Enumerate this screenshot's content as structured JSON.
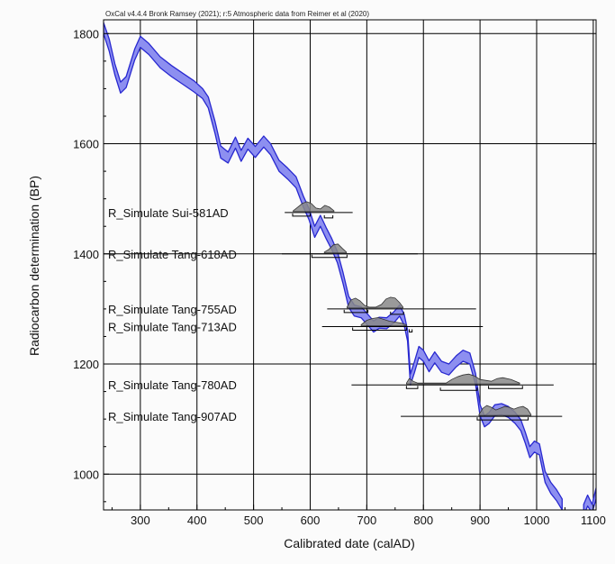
{
  "chart_data": {
    "type": "area",
    "credit": "OxCal v4.4.4 Bronk Ramsey (2021); r:5 Atmospheric data from Reimer et al (2020)",
    "xlabel": "Calibrated date (calAD)",
    "ylabel": "Radiocarbon determination (BP)",
    "xlim": [
      235,
      1105
    ],
    "ylim": [
      935,
      1825
    ],
    "x_ticks": [
      300,
      400,
      500,
      600,
      700,
      800,
      900,
      1000,
      1100
    ],
    "y_ticks": [
      1000,
      1200,
      1400,
      1600,
      1800
    ],
    "grid": true,
    "colors": {
      "curve_fill": "#8d8ff0",
      "curve_line": "#2828d0",
      "dist_fill": "#888888",
      "line": "#000000"
    },
    "calibration_curve": [
      [
        235,
        1820,
        1800
      ],
      [
        245,
        1790,
        1768
      ],
      [
        255,
        1745,
        1725
      ],
      [
        265,
        1712,
        1692
      ],
      [
        275,
        1722,
        1702
      ],
      [
        290,
        1772,
        1752
      ],
      [
        300,
        1795,
        1775
      ],
      [
        315,
        1782,
        1762
      ],
      [
        335,
        1758,
        1738
      ],
      [
        355,
        1742,
        1722
      ],
      [
        375,
        1728,
        1708
      ],
      [
        395,
        1714,
        1694
      ],
      [
        410,
        1700,
        1682
      ],
      [
        420,
        1685,
        1665
      ],
      [
        432,
        1640,
        1618
      ],
      [
        442,
        1596,
        1574
      ],
      [
        455,
        1585,
        1565
      ],
      [
        468,
        1612,
        1592
      ],
      [
        478,
        1588,
        1568
      ],
      [
        490,
        1610,
        1590
      ],
      [
        503,
        1595,
        1575
      ],
      [
        518,
        1614,
        1594
      ],
      [
        530,
        1600,
        1580
      ],
      [
        545,
        1570,
        1550
      ],
      [
        560,
        1556,
        1536
      ],
      [
        575,
        1540,
        1520
      ],
      [
        588,
        1505,
        1485
      ],
      [
        598,
        1482,
        1462
      ],
      [
        608,
        1450,
        1430
      ],
      [
        618,
        1470,
        1450
      ],
      [
        628,
        1448,
        1428
      ],
      [
        638,
        1428,
        1408
      ],
      [
        648,
        1404,
        1384
      ],
      [
        658,
        1366,
        1346
      ],
      [
        668,
        1323,
        1303
      ],
      [
        678,
        1307,
        1287
      ],
      [
        690,
        1304,
        1284
      ],
      [
        702,
        1290,
        1270
      ],
      [
        712,
        1278,
        1258
      ],
      [
        722,
        1285,
        1265
      ],
      [
        735,
        1284,
        1264
      ],
      [
        748,
        1295,
        1275
      ],
      [
        758,
        1307,
        1287
      ],
      [
        766,
        1290,
        1270
      ],
      [
        772,
        1262,
        1242
      ],
      [
        777,
        1182,
        1162
      ],
      [
        784,
        1204,
        1184
      ],
      [
        792,
        1232,
        1212
      ],
      [
        800,
        1225,
        1205
      ],
      [
        810,
        1206,
        1186
      ],
      [
        820,
        1222,
        1202
      ],
      [
        832,
        1205,
        1185
      ],
      [
        845,
        1200,
        1180
      ],
      [
        858,
        1215,
        1195
      ],
      [
        870,
        1225,
        1205
      ],
      [
        882,
        1220,
        1200
      ],
      [
        892,
        1183,
        1163
      ],
      [
        900,
        1126,
        1106
      ],
      [
        908,
        1106,
        1086
      ],
      [
        916,
        1112,
        1092
      ],
      [
        926,
        1126,
        1106
      ],
      [
        938,
        1128,
        1108
      ],
      [
        950,
        1123,
        1103
      ],
      [
        962,
        1112,
        1092
      ],
      [
        972,
        1099,
        1079
      ],
      [
        980,
        1076,
        1056
      ],
      [
        988,
        1050,
        1030
      ],
      [
        996,
        1060,
        1040
      ],
      [
        1005,
        1055,
        1035
      ],
      [
        1015,
        1005,
        985
      ],
      [
        1025,
        985,
        965
      ],
      [
        1035,
        972,
        952
      ],
      [
        1045,
        955,
        935
      ]
    ],
    "curve_tail": [
      [
        1083,
        945,
        925
      ],
      [
        1090,
        962,
        942
      ],
      [
        1098,
        945,
        930
      ],
      [
        1105,
        975,
        955
      ]
    ],
    "samples": [
      {
        "label": "R_Simulate Sui-581AD",
        "bp": 1475,
        "dist_x": [
          570,
          578,
          586,
          594,
          602,
          610,
          618,
          626,
          634,
          642
        ],
        "dist_h": [
          1,
          5,
          9,
          11,
          9,
          4,
          3,
          7,
          5,
          1
        ],
        "range": [
          555,
          675
        ],
        "hpd": [
          [
            569,
            600
          ],
          [
            625,
            640
          ]
        ]
      },
      {
        "label": "R_Simulate Tang-618AD",
        "bp": 1400,
        "dist_x": [
          625,
          633,
          641,
          649,
          657,
          664
        ],
        "dist_h": [
          1,
          4,
          9,
          10,
          5,
          1
        ],
        "range": [
          550,
          790
        ],
        "hpd": [
          [
            603,
            665
          ]
        ]
      },
      {
        "label": "R_Simulate Tang-755AD",
        "bp": 1300,
        "dist_x": [
          665,
          672,
          680,
          688,
          696,
          704,
          716,
          726,
          734,
          742,
          750,
          758,
          764
        ],
        "dist_h": [
          1,
          9,
          11,
          8,
          3,
          1,
          1,
          4,
          10,
          12,
          11,
          6,
          1
        ],
        "range": [
          630,
          893
        ],
        "hpd": [
          [
            660,
            702
          ],
          [
            742,
            765
          ]
        ]
      },
      {
        "label": "R_Simulate Tang-713AD",
        "bp": 1268,
        "dist_x": [
          690,
          700,
          710,
          720,
          730,
          740,
          750,
          760,
          770
        ],
        "dist_h": [
          1,
          6,
          8,
          9,
          7,
          5,
          4,
          3,
          1
        ],
        "range": [
          621,
          905
        ],
        "hpd": [
          [
            675,
            770
          ],
          [
            775,
            780
          ]
        ]
      },
      {
        "label": "R_Simulate Tang-780AD",
        "bp": 1162,
        "dist_x": [
          770,
          775,
          782,
          790,
          840,
          850,
          860,
          870,
          880,
          890,
          900,
          920,
          930,
          940,
          955,
          970
        ],
        "dist_h": [
          1,
          6,
          3,
          1,
          1,
          5,
          8,
          10,
          11,
          9,
          5,
          3,
          6,
          7,
          5,
          1
        ],
        "range": [
          673,
          1030
        ],
        "hpd": [
          [
            770,
            790
          ],
          [
            830,
            895
          ],
          [
            915,
            975
          ]
        ]
      },
      {
        "label": "R_Simulate Tang-907AD",
        "bp": 1105,
        "dist_x": [
          898,
          905,
          912,
          920,
          928,
          936,
          944,
          952,
          960,
          968,
          976,
          984,
          990
        ],
        "dist_h": [
          1,
          8,
          11,
          9,
          6,
          8,
          10,
          9,
          7,
          9,
          10,
          7,
          1
        ],
        "range": [
          760,
          1045
        ],
        "hpd": [
          [
            895,
            985
          ]
        ]
      }
    ]
  }
}
